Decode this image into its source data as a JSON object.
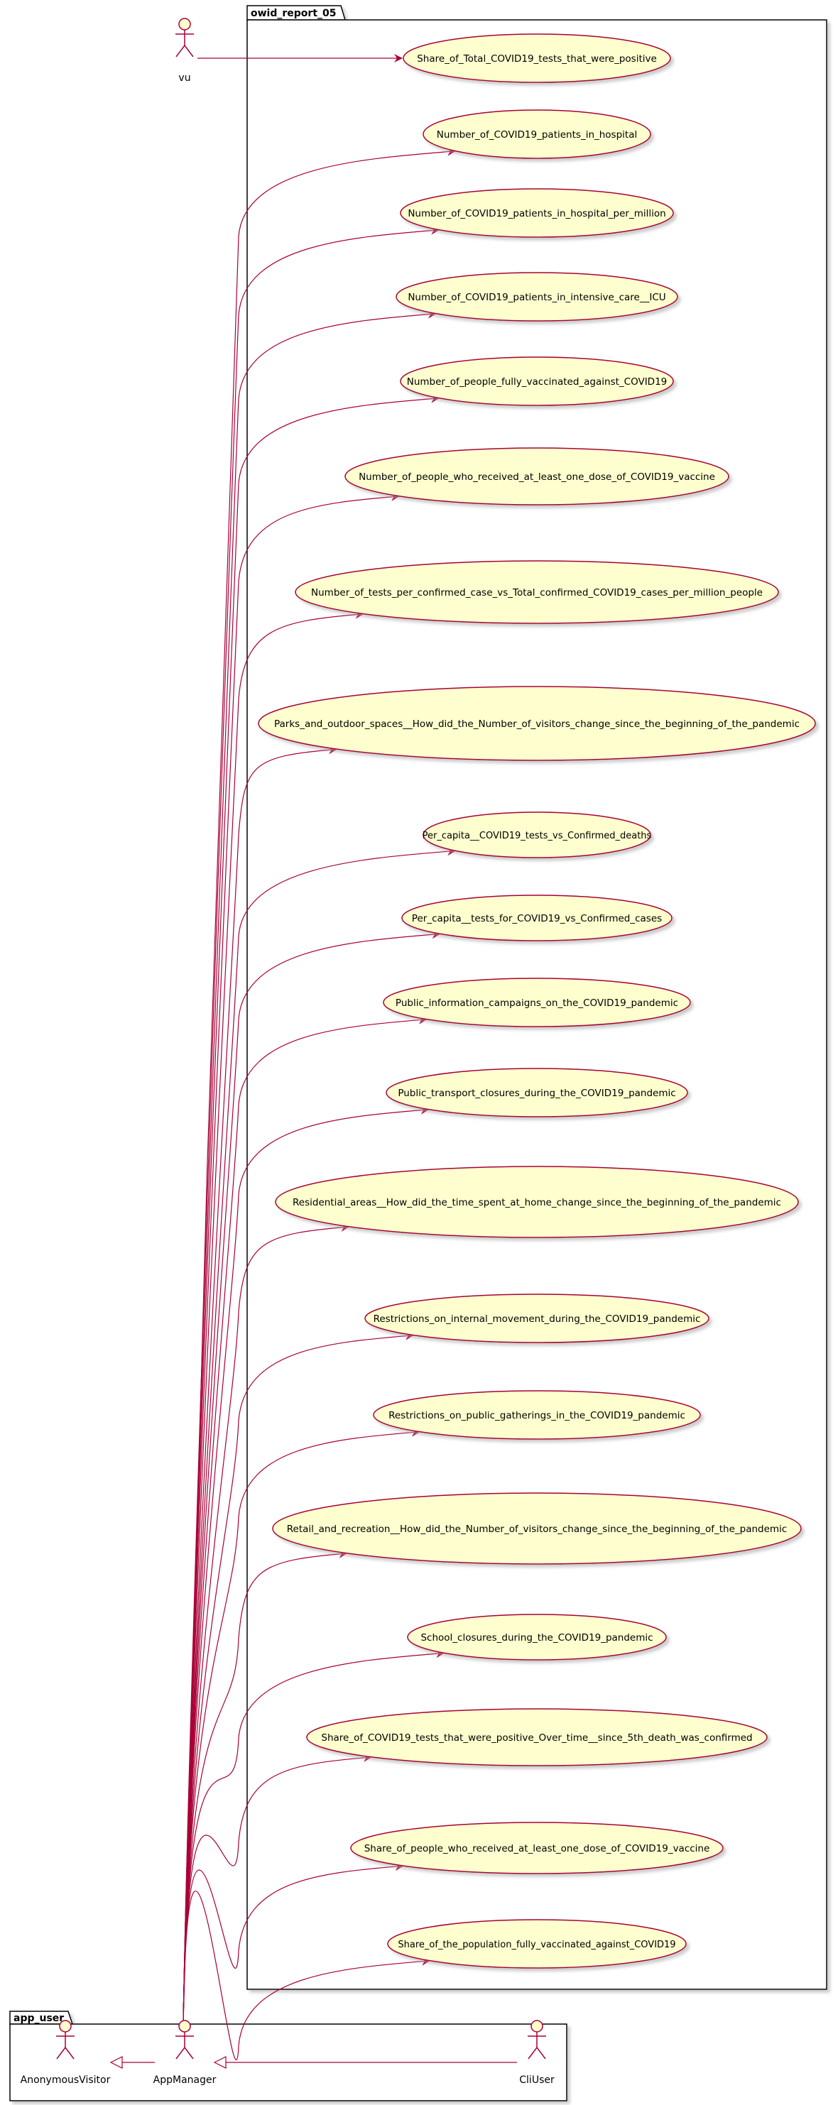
{
  "colors": {
    "accent": "#A80036",
    "usecase_fill": "#FEFECE",
    "package_fill": "#FFFFFF",
    "shadow": "#AAAAAA"
  },
  "packages": [
    {
      "title": "owid_report_05"
    },
    {
      "title": "app_user"
    }
  ],
  "actors": [
    {
      "name": "vu",
      "icon": "stick-figure-icon"
    },
    {
      "name": "AnonymousVisitor",
      "icon": "stick-figure-icon"
    },
    {
      "name": "AppManager",
      "icon": "stick-figure-icon"
    },
    {
      "name": "CliUser",
      "icon": "stick-figure-icon"
    }
  ],
  "usecases": [
    "Share_of_Total_COVID19_tests_that_were_positive",
    "Number_of_COVID19_patients_in_hospital",
    "Number_of_COVID19_patients_in_hospital_per_million",
    "Number_of_COVID19_patients_in_intensive_care__ICU",
    "Number_of_people_fully_vaccinated_against_COVID19",
    "Number_of_people_who_received_at_least_one_dose_of_COVID19_vaccine",
    "Number_of_tests_per_confirmed_case_vs_Total_confirmed_COVID19_cases_per_million_people",
    "Parks_and_outdoor_spaces__How_did_the_Number_of_visitors_change_since_the_beginning_of_the_pandemic",
    "Per_capita__COVID19_tests_vs_Confirmed_deaths",
    "Per_capita__tests_for_COVID19_vs_Confirmed_cases",
    "Public_information_campaigns_on_the_COVID19_pandemic",
    "Public_transport_closures_during_the_COVID19_pandemic",
    "Residential_areas__How_did_the_time_spent_at_home_change_since_the_beginning_of_the_pandemic",
    "Restrictions_on_internal_movement_during_the_COVID19_pandemic",
    "Restrictions_on_public_gatherings_in_the_COVID19_pandemic",
    "Retail_and_recreation__How_did_the_Number_of_visitors_change_since_the_beginning_of_the_pandemic",
    "School_closures_during_the_COVID19_pandemic",
    "Share_of_COVID19_tests_that_were_positive_Over_time__since_5th_death_was_confirmed",
    "Share_of_people_who_received_at_least_one_dose_of_COVID19_vaccine",
    "Share_of_the_population_fully_vaccinated_against_COVID19"
  ],
  "associations": [
    {
      "from": "vu",
      "to": "Share_of_Total_COVID19_tests_that_were_positive"
    },
    {
      "from": "AppManager",
      "to": "all use cases except the first"
    }
  ],
  "generalizations": [
    {
      "child": "AppManager",
      "parent": "AnonymousVisitor"
    },
    {
      "child": "CliUser",
      "parent": "AppManager"
    }
  ]
}
